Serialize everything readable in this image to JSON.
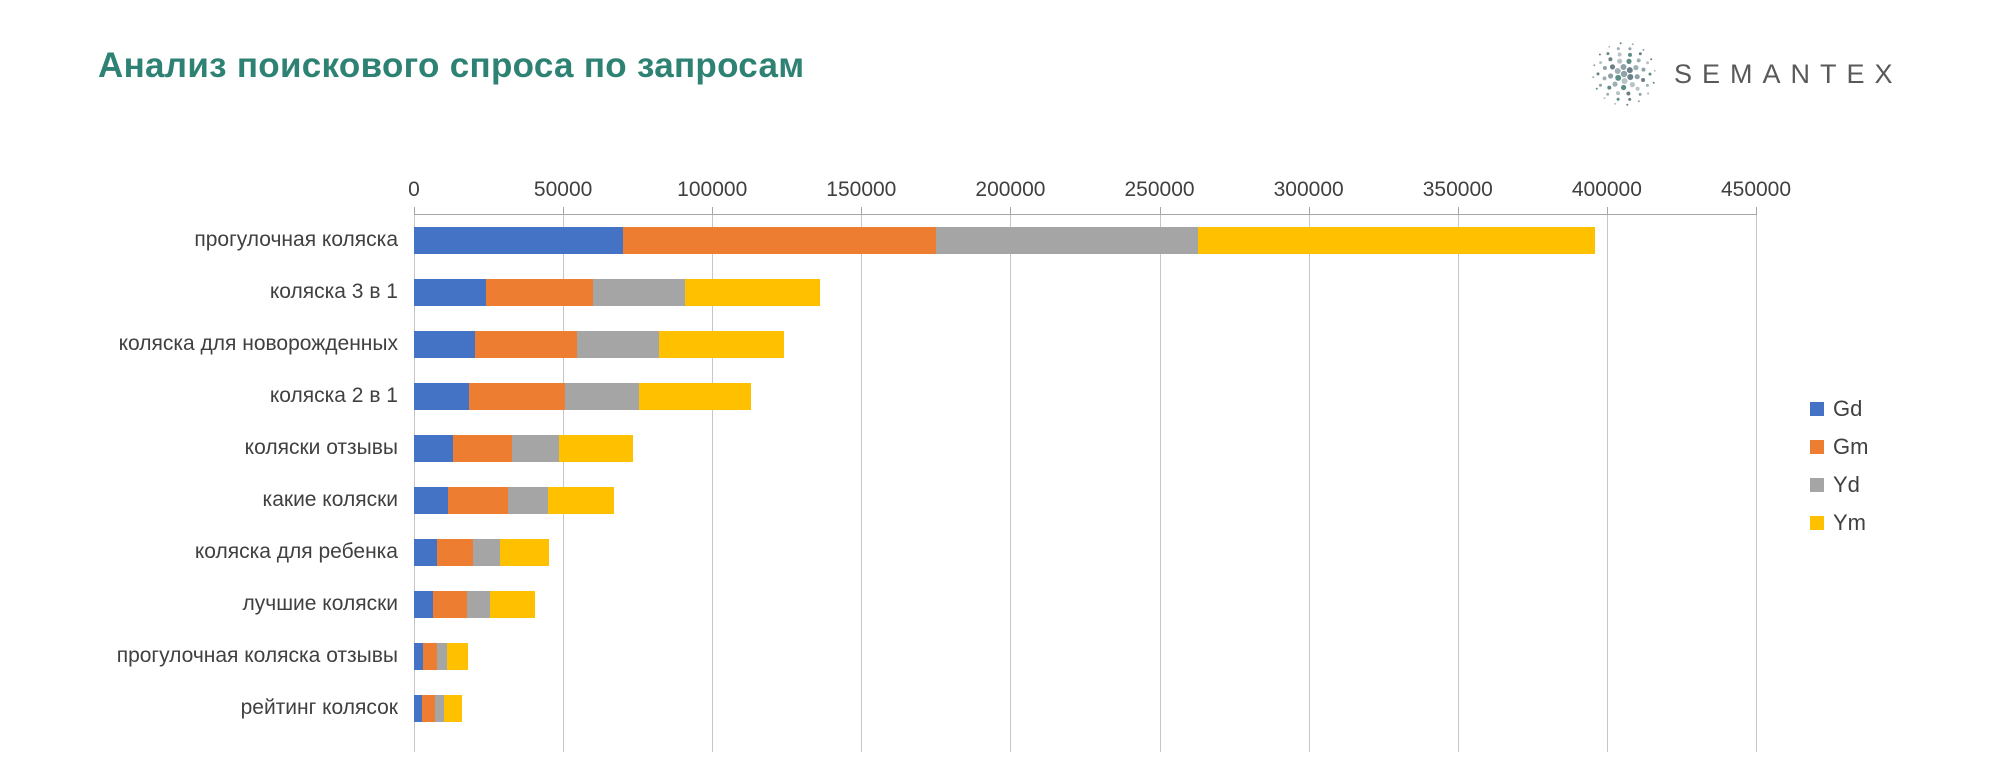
{
  "header": {
    "title": "Анализ поискового спроса по запросам",
    "logo_text": "SEMANTEX"
  },
  "chart_data": {
    "type": "bar",
    "orientation": "horizontal",
    "stacked": true,
    "title": "Анализ поискового спроса по запросам",
    "grid": true,
    "legend_position": "right",
    "x_axis": {
      "min": 0,
      "max": 450000,
      "step": 50000,
      "tick_labels": [
        "0",
        "50000",
        "100000",
        "150000",
        "200000",
        "250000",
        "300000",
        "350000",
        "400000",
        "450000"
      ]
    },
    "categories": [
      "прогулочная коляска",
      "коляска 3 в 1",
      "коляска для новорожденных",
      "коляска 2 в 1",
      "коляски отзывы",
      "какие коляски",
      "коляска для ребенка",
      "лучшие коляски",
      "прогулочная коляска отзывы",
      "рейтинг колясок"
    ],
    "series": [
      {
        "name": "Gd",
        "color": "#4472C4",
        "values": [
          70000,
          24000,
          20500,
          18500,
          13000,
          11500,
          7700,
          6400,
          3000,
          2800
        ]
      },
      {
        "name": "Gm",
        "color": "#ED7D31",
        "values": [
          105000,
          36000,
          34000,
          32000,
          20000,
          20000,
          12000,
          11500,
          4700,
          4300
        ]
      },
      {
        "name": "Yd",
        "color": "#A5A5A5",
        "values": [
          88000,
          31000,
          27500,
          25000,
          15500,
          13500,
          9000,
          7700,
          3400,
          3100
        ]
      },
      {
        "name": "Ym",
        "color": "#FFC000",
        "values": [
          133000,
          45000,
          42000,
          37500,
          25000,
          22000,
          16500,
          15000,
          6900,
          6000
        ]
      }
    ],
    "colors": {
      "title_accent": "#2E8274",
      "axis_text": "#404040",
      "gridline": "#C6C6C6",
      "logo_text": "#595959"
    }
  }
}
